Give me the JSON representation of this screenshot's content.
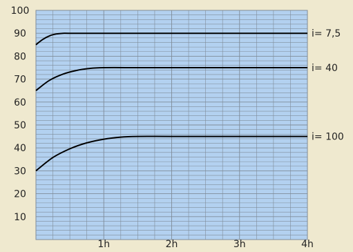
{
  "chart_data": {
    "type": "line",
    "title": "",
    "xlabel": "",
    "ylabel": "",
    "xlim": [
      0,
      4
    ],
    "ylim": [
      0,
      100
    ],
    "x_ticks": [
      {
        "value": 1,
        "label": "1h"
      },
      {
        "value": 2,
        "label": "2h"
      },
      {
        "value": 3,
        "label": "3h"
      },
      {
        "value": 4,
        "label": "4h"
      }
    ],
    "y_ticks": [
      10,
      20,
      30,
      40,
      50,
      60,
      70,
      80,
      90,
      100
    ],
    "grid": true,
    "colors": {
      "plot_background": "#b3d1f0",
      "grid_line": "#7f8c99",
      "line": "#000000",
      "text": "#222222",
      "page_background": "#efe9cf"
    },
    "series": [
      {
        "name": "i= 7,5",
        "x": [
          0,
          0.1,
          0.2,
          0.3,
          0.4,
          0.5,
          1,
          2,
          3,
          4
        ],
        "y": [
          85,
          87.3,
          88.9,
          89.7,
          90,
          90,
          90,
          90,
          90,
          90
        ]
      },
      {
        "name": "i= 40",
        "x": [
          0,
          0.2,
          0.4,
          0.6,
          0.8,
          1,
          1.5,
          2,
          3,
          4
        ],
        "y": [
          65,
          69.5,
          72.2,
          73.8,
          74.7,
          75,
          75,
          75,
          75,
          75
        ]
      },
      {
        "name": "i= 100",
        "x": [
          0,
          0.25,
          0.5,
          0.75,
          1,
          1.25,
          1.5,
          2,
          3,
          4
        ],
        "y": [
          30,
          35.8,
          39.6,
          42.2,
          43.8,
          44.7,
          45,
          45,
          45,
          45
        ]
      }
    ]
  }
}
